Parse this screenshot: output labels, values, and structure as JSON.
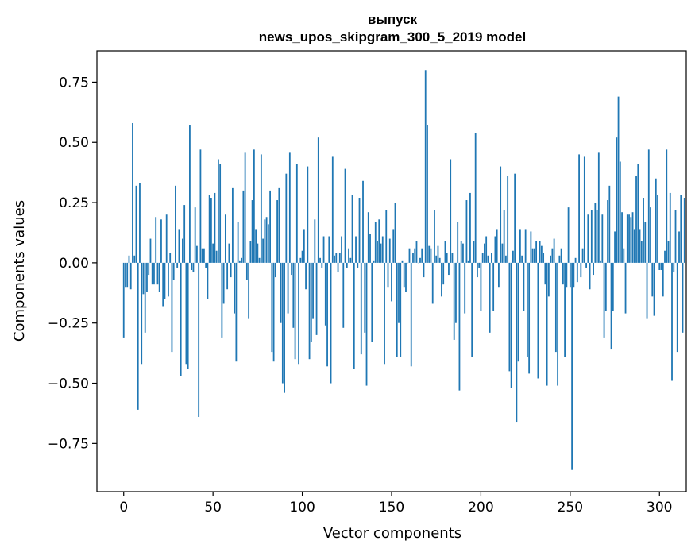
{
  "chart_data": {
    "type": "bar",
    "title_line1": "выпуск",
    "title_line2": "news_upos_skipgram_300_5_2019 model",
    "xlabel": "Vector components",
    "ylabel": "Components values",
    "xlim": [
      -15,
      315
    ],
    "ylim": [
      -0.95,
      0.88
    ],
    "xticks": [
      0,
      50,
      100,
      150,
      200,
      250,
      300
    ],
    "xtick_labels": [
      "0",
      "50",
      "100",
      "150",
      "200",
      "250",
      "300"
    ],
    "yticks": [
      0.75,
      0.5,
      0.25,
      0.0,
      -0.25,
      -0.5,
      -0.75
    ],
    "ytick_labels": [
      "0.75",
      "0.50",
      "0.25",
      "0.00",
      "−0.25",
      "−0.50",
      "−0.75"
    ],
    "grid": false,
    "bar_color": "#1f77b4",
    "x_start": 0,
    "values": [
      -0.31,
      -0.1,
      -0.1,
      0.03,
      -0.11,
      0.58,
      0.03,
      0.32,
      -0.61,
      0.33,
      -0.42,
      -0.13,
      -0.29,
      -0.12,
      -0.05,
      0.1,
      -0.09,
      -0.09,
      0.19,
      -0.09,
      -0.12,
      0.18,
      -0.18,
      -0.15,
      0.2,
      -0.14,
      0.04,
      -0.37,
      -0.07,
      0.32,
      -0.02,
      0.14,
      -0.47,
      0.1,
      0.24,
      -0.42,
      -0.44,
      0.57,
      -0.03,
      -0.04,
      0.23,
      0.07,
      -0.64,
      0.47,
      0.06,
      0.06,
      -0.02,
      -0.15,
      0.28,
      0.27,
      0.08,
      0.29,
      0.05,
      0.43,
      0.41,
      -0.31,
      -0.17,
      0.2,
      -0.11,
      0.08,
      -0.06,
      0.31,
      -0.21,
      -0.41,
      0.17,
      0.01,
      0.02,
      0.3,
      0.46,
      -0.07,
      -0.23,
      0.09,
      0.26,
      0.47,
      0.14,
      0.08,
      0.02,
      0.45,
      0.1,
      0.18,
      0.19,
      0.16,
      0.3,
      -0.37,
      -0.41,
      -0.06,
      0.26,
      0.31,
      -0.25,
      -0.5,
      -0.54,
      0.37,
      -0.21,
      0.46,
      -0.05,
      -0.27,
      -0.4,
      0.41,
      -0.42,
      0.02,
      0.05,
      0.14,
      -0.11,
      0.4,
      -0.4,
      -0.33,
      -0.23,
      0.18,
      -0.3,
      0.52,
      0.02,
      -0.02,
      0.11,
      -0.26,
      -0.43,
      0.11,
      -0.5,
      0.44,
      0.03,
      0.04,
      -0.04,
      0.04,
      0.11,
      -0.27,
      0.39,
      -0.02,
      0.06,
      0.02,
      0.28,
      -0.44,
      0.11,
      -0.02,
      0.27,
      -0.38,
      0.34,
      -0.29,
      -0.51,
      0.21,
      0.12,
      -0.33,
      0.01,
      0.17,
      0.09,
      0.18,
      0.08,
      0.11,
      -0.42,
      0.22,
      -0.1,
      0.1,
      -0.16,
      0.14,
      0.25,
      -0.39,
      -0.25,
      -0.39,
      0.01,
      -0.1,
      -0.12,
      0.0,
      0.06,
      -0.43,
      0.04,
      0.06,
      0.09,
      0.0,
      0.02,
      0.06,
      -0.06,
      0.8,
      0.57,
      0.07,
      0.06,
      -0.17,
      0.22,
      0.03,
      0.07,
      0.02,
      -0.14,
      -0.09,
      0.09,
      0.04,
      -0.05,
      0.43,
      0.04,
      -0.32,
      -0.25,
      0.17,
      -0.53,
      0.09,
      0.08,
      -0.21,
      0.26,
      0.01,
      0.29,
      -0.39,
      0.09,
      0.54,
      -0.06,
      -0.02,
      -0.2,
      0.04,
      0.08,
      0.11,
      0.03,
      -0.29,
      0.04,
      -0.2,
      0.11,
      0.14,
      -0.1,
      0.4,
      0.08,
      0.22,
      0.03,
      0.36,
      -0.45,
      -0.52,
      0.05,
      0.37,
      -0.66,
      -0.41,
      0.14,
      0.03,
      -0.2,
      0.14,
      -0.39,
      -0.46,
      0.13,
      0.06,
      0.06,
      0.09,
      -0.48,
      0.09,
      0.07,
      0.04,
      -0.09,
      -0.51,
      -0.14,
      0.03,
      0.06,
      0.1,
      -0.37,
      -0.51,
      0.03,
      0.06,
      -0.09,
      -0.39,
      -0.1,
      0.23,
      -0.1,
      -0.86,
      -0.1,
      0.02,
      -0.08,
      0.45,
      -0.06,
      0.06,
      0.44,
      -0.02,
      0.2,
      -0.11,
      0.22,
      -0.05,
      0.25,
      0.22,
      0.46,
      0.01,
      0.2,
      -0.31,
      -0.2,
      0.26,
      0.32,
      -0.36,
      -0.2,
      0.13,
      0.52,
      0.69,
      0.42,
      0.21,
      0.06,
      -0.21,
      0.2,
      0.2,
      0.19,
      0.21,
      0.14,
      0.36,
      0.41,
      0.14,
      0.09,
      0.27,
      0.17,
      -0.23,
      0.47,
      0.23,
      -0.14,
      -0.22,
      0.35,
      0.28,
      -0.03,
      -0.03,
      -0.14,
      0.05,
      0.47,
      0.09,
      0.29,
      -0.49,
      -0.04,
      0.22,
      -0.37,
      0.13,
      0.28,
      -0.29,
      0.27
    ]
  }
}
